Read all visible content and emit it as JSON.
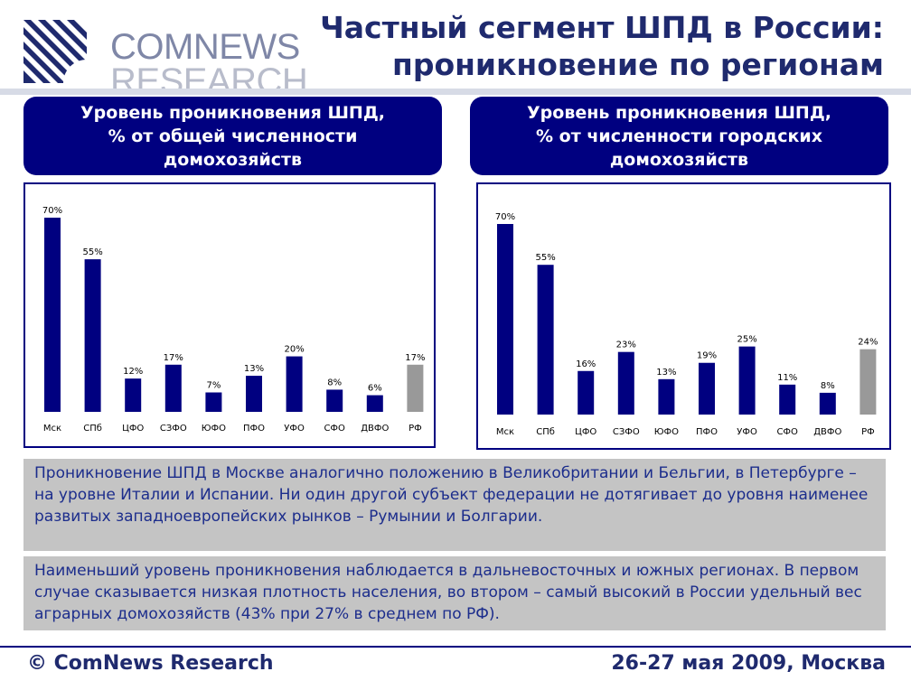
{
  "logo": {
    "line1": "COMNEWS",
    "line2": "RESEARCH"
  },
  "title": {
    "line1": "Частный сегмент ШПД в России:",
    "line2": "проникновение по регионам"
  },
  "panels": [
    {
      "header": [
        "Уровень проникновения ШПД,",
        "% от общей численности",
        "домохозяйств"
      ]
    },
    {
      "header": [
        "Уровень проникновения ШПД,",
        "% от численности городских",
        "домохозяйств"
      ]
    }
  ],
  "chart_data": [
    {
      "type": "bar",
      "title": "Уровень проникновения ШПД, % от общей численности домохозяйств",
      "categories": [
        "Мск",
        "СПб",
        "ЦФО",
        "СЗФО",
        "ЮФО",
        "ПФО",
        "УФО",
        "СФО",
        "ДВФО",
        "РФ"
      ],
      "values": [
        70,
        55,
        12,
        17,
        7,
        13,
        20,
        8,
        6,
        17
      ],
      "value_labels": [
        "70%",
        "55%",
        "12%",
        "17%",
        "7%",
        "13%",
        "20%",
        "8%",
        "6%",
        "17%"
      ],
      "unit": "%",
      "colors": {
        "regions": "#000080",
        "total": "#999999"
      },
      "ylim": [
        0,
        70
      ],
      "grid": false,
      "legend": "none"
    },
    {
      "type": "bar",
      "title": "Уровень проникновения ШПД, % от численности городских домохозяйств",
      "categories": [
        "Мск",
        "СПб",
        "ЦФО",
        "СЗФО",
        "ЮФО",
        "ПФО",
        "УФО",
        "СФО",
        "ДВФО",
        "РФ"
      ],
      "values": [
        70,
        55,
        16,
        23,
        13,
        19,
        25,
        11,
        8,
        24
      ],
      "value_labels": [
        "70%",
        "55%",
        "16%",
        "23%",
        "13%",
        "19%",
        "25%",
        "11%",
        "8%",
        "24%"
      ],
      "unit": "%",
      "colors": {
        "regions": "#000080",
        "total": "#999999"
      },
      "ylim": [
        0,
        70
      ],
      "grid": false,
      "legend": "none"
    }
  ],
  "notes": [
    "Проникновение ШПД в Москве аналогично положению в Великобритании и Бельгии, в Петербурге – на уровне Италии и Испании. Ни один другой субъект федерации не дотягивает до уровня наименее развитых западноевропейских рынков – Румынии и Болгарии.",
    "Наименьший уровень проникновения наблюдается в дальневосточных и южных регионах. В первом случае сказывается низкая плотность населения, во втором – самый высокий в России удельный вес аграрных домохозяйств (43% при 27% в среднем по РФ)."
  ],
  "footer": {
    "left": "© ComNews Research",
    "right": "26-27 мая 2009, Москва"
  }
}
